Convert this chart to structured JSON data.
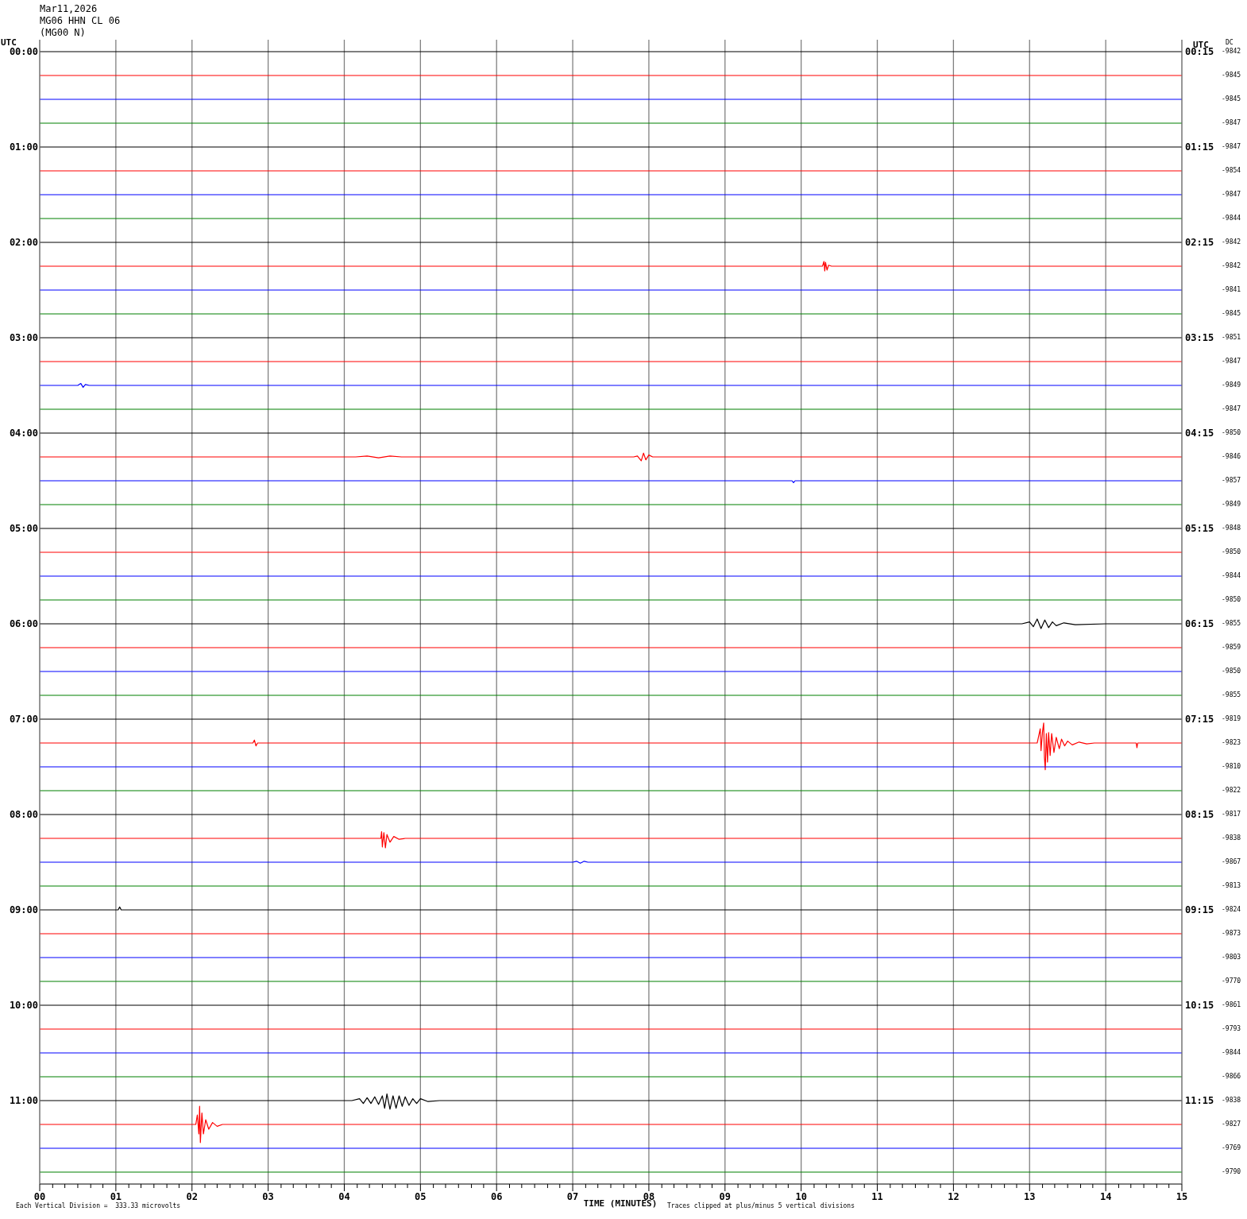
{
  "chart_data": {
    "type": "line",
    "title": "Mar11,2026",
    "subtitle": "MG06 HHN CL 06\n(MG00 N)",
    "xlabel": "TIME (MINUTES)",
    "ylabel": "UTC",
    "y2label": "UTC",
    "annotations": [
      "Each Vertical Division =  333.33 microvolts",
      "Traces clipped at plus/minus 5 vertical divisions",
      "DC",
      "-9842",
      "-9845",
      "-9845",
      "-9847",
      "-9847",
      "-9854",
      "-9847",
      "-9844",
      "-9842",
      "-9842",
      "-9841",
      "-9845",
      "-9851",
      "-9847",
      "-9849",
      "-9847",
      "-9850",
      "-9846",
      "-9857",
      "-9849",
      "-9848",
      "-9850",
      "-9844",
      "-9850",
      "-9855",
      "-9859",
      "-9850",
      "-9855",
      "-9819",
      "-9823",
      "-9810",
      "-9822",
      "-9817",
      "-9838",
      "-9867",
      "-9813",
      "-9824",
      "-9873",
      "-9803",
      "-9770",
      "-9861",
      "-9793",
      "-9844",
      "-9866",
      "-9838",
      "-9827",
      "-9769",
      "-9790"
    ],
    "grid": "x",
    "xlim": [
      0,
      15
    ],
    "xticks": [
      {
        "value": 0,
        "label": "00"
      },
      {
        "value": 0.17,
        "label": null
      },
      {
        "value": 0.33,
        "label": null
      },
      {
        "value": 0.5,
        "label": null
      },
      {
        "value": 0.67,
        "label": null
      },
      {
        "value": 0.83,
        "label": null
      },
      {
        "value": 1,
        "label": "01"
      },
      {
        "value": 1.17,
        "label": null
      },
      {
        "value": 1.33,
        "label": null
      },
      {
        "value": 1.5,
        "label": null
      },
      {
        "value": 1.67,
        "label": null
      },
      {
        "value": 1.83,
        "label": null
      },
      {
        "value": 2,
        "label": "02"
      },
      {
        "value": 2.17,
        "label": null
      },
      {
        "value": 2.33,
        "label": null
      },
      {
        "value": 2.5,
        "label": null
      },
      {
        "value": 2.67,
        "label": null
      },
      {
        "value": 2.83,
        "label": null
      },
      {
        "value": 3,
        "label": "03"
      },
      {
        "value": 3.17,
        "label": null
      },
      {
        "value": 3.33,
        "label": null
      },
      {
        "value": 3.5,
        "label": null
      },
      {
        "value": 3.67,
        "label": null
      },
      {
        "value": 3.83,
        "label": null
      },
      {
        "value": 4,
        "label": "04"
      },
      {
        "value": 4.17,
        "label": null
      },
      {
        "value": 4.33,
        "label": null
      },
      {
        "value": 4.5,
        "label": null
      },
      {
        "value": 4.67,
        "label": null
      },
      {
        "value": 4.83,
        "label": null
      },
      {
        "value": 5,
        "label": "05"
      },
      {
        "value": 5.17,
        "label": null
      },
      {
        "value": 5.33,
        "label": null
      },
      {
        "value": 5.5,
        "label": null
      },
      {
        "value": 5.67,
        "label": null
      },
      {
        "value": 5.83,
        "label": null
      },
      {
        "value": 6,
        "label": "06"
      },
      {
        "value": 6.17,
        "label": null
      },
      {
        "value": 6.33,
        "label": null
      },
      {
        "value": 6.5,
        "label": null
      },
      {
        "value": 6.67,
        "label": null
      },
      {
        "value": 6.83,
        "label": null
      },
      {
        "value": 7,
        "label": "07"
      },
      {
        "value": 7.17,
        "label": null
      },
      {
        "value": 7.33,
        "label": null
      },
      {
        "value": 7.5,
        "label": null
      },
      {
        "value": 7.67,
        "label": null
      },
      {
        "value": 7.83,
        "label": null
      },
      {
        "value": 8,
        "label": "08"
      },
      {
        "value": 8.17,
        "label": null
      },
      {
        "value": 8.33,
        "label": null
      },
      {
        "value": 8.5,
        "label": null
      },
      {
        "value": 8.67,
        "label": null
      },
      {
        "value": 8.83,
        "label": null
      },
      {
        "value": 9,
        "label": "09"
      },
      {
        "value": 9.17,
        "label": null
      },
      {
        "value": 9.33,
        "label": null
      },
      {
        "value": 9.5,
        "label": null
      },
      {
        "value": 9.67,
        "label": null
      },
      {
        "value": 9.83,
        "label": null
      },
      {
        "value": 10,
        "label": "10"
      },
      {
        "value": 10.17,
        "label": null
      },
      {
        "value": 10.33,
        "label": null
      },
      {
        "value": 10.5,
        "label": null
      },
      {
        "value": 10.67,
        "label": null
      },
      {
        "value": 10.83,
        "label": null
      },
      {
        "value": 11,
        "label": "11"
      },
      {
        "value": 11.17,
        "label": null
      },
      {
        "value": 11.33,
        "label": null
      },
      {
        "value": 11.5,
        "label": null
      },
      {
        "value": 11.67,
        "label": null
      },
      {
        "value": 11.83,
        "label": null
      },
      {
        "value": 12,
        "label": "12"
      },
      {
        "value": 12.17,
        "label": null
      },
      {
        "value": 12.33,
        "label": null
      },
      {
        "value": 12.5,
        "label": null
      },
      {
        "value": 12.67,
        "label": null
      },
      {
        "value": 12.83,
        "label": null
      },
      {
        "value": 13,
        "label": "13"
      },
      {
        "value": 13.17,
        "label": null
      },
      {
        "value": 13.33,
        "label": null
      },
      {
        "value": 13.5,
        "label": null
      },
      {
        "value": 13.67,
        "label": null
      },
      {
        "value": 13.83,
        "label": null
      },
      {
        "value": 14,
        "label": "14"
      },
      {
        "value": 14.17,
        "label": null
      },
      {
        "value": 14.33,
        "label": null
      },
      {
        "value": 14.5,
        "label": null
      },
      {
        "value": 14.67,
        "label": null
      },
      {
        "value": 14.83,
        "label": null
      },
      {
        "value": 15,
        "label": "15"
      }
    ],
    "ylim": [
      11.875,
      -0.125
    ],
    "yticks": [
      {
        "value": 0,
        "label": "00:00"
      },
      {
        "value": 1,
        "label": "01:00"
      },
      {
        "value": 2,
        "label": "02:00"
      },
      {
        "value": 3,
        "label": "03:00"
      },
      {
        "value": 4,
        "label": "04:00"
      },
      {
        "value": 5,
        "label": "05:00"
      },
      {
        "value": 6,
        "label": "06:00"
      },
      {
        "value": 7,
        "label": "07:00"
      },
      {
        "value": 8,
        "label": "08:00"
      },
      {
        "value": 9,
        "label": "09:00"
      },
      {
        "value": 10,
        "label": "10:00"
      },
      {
        "value": 11,
        "label": "11:00"
      }
    ],
    "y2lim": [
      12.125,
      0.125
    ],
    "y2ticks": [
      {
        "value": 0.25,
        "label": "00:15"
      },
      {
        "value": 1.25,
        "label": "01:15"
      },
      {
        "value": 2.25,
        "label": "02:15"
      },
      {
        "value": 3.25,
        "label": "03:15"
      },
      {
        "value": 4.25,
        "label": "04:15"
      },
      {
        "value": 5.25,
        "label": "05:15"
      },
      {
        "value": 6.25,
        "label": "06:15"
      },
      {
        "value": 7.25,
        "label": "07:15"
      },
      {
        "value": 8.25,
        "label": "08:15"
      },
      {
        "value": 9.25,
        "label": "09:15"
      },
      {
        "value": 10.25,
        "label": "10:15"
      },
      {
        "value": 11.25,
        "label": "11:15"
      }
    ],
    "series": [
      {
        "color": "#000000",
        "x": [
          0,
          15
        ],
        "values": [
          0,
          0
        ]
      },
      {
        "color": "#ff0000",
        "x": [
          0,
          15
        ],
        "values": [
          0.25,
          0.25
        ]
      },
      {
        "color": "#0000ff",
        "x": [
          0,
          15
        ],
        "values": [
          0.5,
          0.5
        ]
      },
      {
        "color": "#008000",
        "x": [
          0,
          15
        ],
        "values": [
          0.75,
          0.75
        ]
      },
      {
        "color": "#000000",
        "x": [
          0,
          15
        ],
        "values": [
          1,
          1
        ]
      },
      {
        "color": "#ff0000",
        "x": [
          0,
          15
        ],
        "values": [
          1.25,
          1.25
        ]
      },
      {
        "color": "#0000ff",
        "x": [
          0,
          15
        ],
        "values": [
          1.5,
          1.5
        ]
      },
      {
        "color": "#008000",
        "x": [
          0,
          15
        ],
        "values": [
          1.75,
          1.75
        ]
      },
      {
        "color": "#000000",
        "x": [
          0,
          15
        ],
        "values": [
          2,
          2
        ]
      },
      {
        "color": "#ff0000",
        "x": [
          0,
          10.28,
          10.3,
          10.31,
          10.32,
          10.34,
          10.36,
          10.4,
          15
        ],
        "values": [
          2.25,
          2.25,
          2.2,
          2.3,
          2.21,
          2.29,
          2.24,
          2.25,
          2.25
        ]
      },
      {
        "color": "#0000ff",
        "x": [
          0,
          15
        ],
        "values": [
          2.5,
          2.5
        ]
      },
      {
        "color": "#008000",
        "x": [
          0,
          15
        ],
        "values": [
          2.75,
          2.75
        ]
      },
      {
        "color": "#000000",
        "x": [
          0,
          15
        ],
        "values": [
          3,
          3
        ]
      },
      {
        "color": "#ff0000",
        "x": [
          0,
          15
        ],
        "values": [
          3.25,
          3.25
        ]
      },
      {
        "color": "#0000ff",
        "x": [
          0,
          0.5,
          0.54,
          0.57,
          0.6,
          0.65,
          15
        ],
        "values": [
          3.5,
          3.5,
          3.48,
          3.52,
          3.49,
          3.5,
          3.5
        ]
      },
      {
        "color": "#008000",
        "x": [
          0,
          15
        ],
        "values": [
          3.75,
          3.75
        ]
      },
      {
        "color": "#000000",
        "x": [
          0,
          15
        ],
        "values": [
          4,
          4
        ]
      },
      {
        "color": "#ff0000",
        "x": [
          0,
          4.15,
          4.3,
          4.45,
          4.6,
          4.75,
          7.8,
          7.85,
          7.9,
          7.93,
          7.96,
          8,
          8.05,
          15
        ],
        "values": [
          4.25,
          4.25,
          4.24,
          4.26,
          4.24,
          4.25,
          4.25,
          4.24,
          4.29,
          4.21,
          4.28,
          4.23,
          4.25,
          4.25
        ]
      },
      {
        "color": "#0000ff",
        "x": [
          0,
          9.88,
          9.9,
          9.92,
          15
        ],
        "values": [
          4.5,
          4.5,
          4.52,
          4.5,
          4.5
        ]
      },
      {
        "color": "#008000",
        "x": [
          0,
          15
        ],
        "values": [
          4.75,
          4.75
        ]
      },
      {
        "color": "#000000",
        "x": [
          0,
          15
        ],
        "values": [
          5,
          5
        ]
      },
      {
        "color": "#ff0000",
        "x": [
          0,
          15
        ],
        "values": [
          5.25,
          5.25
        ]
      },
      {
        "color": "#0000ff",
        "x": [
          0,
          15
        ],
        "values": [
          5.5,
          5.5
        ]
      },
      {
        "color": "#008000",
        "x": [
          0,
          15
        ],
        "values": [
          5.75,
          5.75
        ]
      },
      {
        "color": "#000000",
        "x": [
          0,
          12.9,
          13,
          13.05,
          13.1,
          13.15,
          13.2,
          13.25,
          13.3,
          13.35,
          13.45,
          13.6,
          14,
          15
        ],
        "values": [
          6,
          6,
          5.98,
          6.03,
          5.95,
          6.05,
          5.96,
          6.04,
          5.98,
          6.02,
          5.99,
          6.01,
          6,
          6
        ]
      },
      {
        "color": "#ff0000",
        "x": [
          0,
          15
        ],
        "values": [
          6.25,
          6.25
        ]
      },
      {
        "color": "#0000ff",
        "x": [
          0,
          15
        ],
        "values": [
          6.5,
          6.5
        ]
      },
      {
        "color": "#008000",
        "x": [
          0,
          15
        ],
        "values": [
          6.75,
          6.75
        ]
      },
      {
        "color": "#000000",
        "x": [
          0,
          15
        ],
        "values": [
          7,
          7
        ]
      },
      {
        "color": "#ff0000",
        "x": [
          0,
          2.8,
          2.82,
          2.84,
          2.86,
          13.1,
          13.14,
          13.15,
          13.17,
          13.185,
          13.195,
          13.206,
          13.22,
          13.235,
          13.25,
          13.27,
          13.29,
          13.32,
          13.35,
          13.39,
          13.42,
          13.46,
          13.5,
          13.56,
          13.65,
          13.75,
          13.85,
          14.4,
          14.41,
          14.42,
          15
        ],
        "values": [
          7.25,
          7.25,
          7.22,
          7.28,
          7.25,
          7.25,
          7.1,
          7.33,
          7.13,
          7.04,
          7.4,
          7.53,
          7.15,
          7.45,
          7.14,
          7.38,
          7.15,
          7.35,
          7.19,
          7.31,
          7.21,
          7.28,
          7.23,
          7.27,
          7.24,
          7.26,
          7.25,
          7.25,
          7.3,
          7.25,
          7.25
        ]
      },
      {
        "color": "#0000ff",
        "x": [
          0,
          15
        ],
        "values": [
          7.5,
          7.5
        ]
      },
      {
        "color": "#008000",
        "x": [
          0,
          15
        ],
        "values": [
          7.75,
          7.75
        ]
      },
      {
        "color": "#000000",
        "x": [
          0,
          15
        ],
        "values": [
          8,
          8
        ]
      },
      {
        "color": "#ff0000",
        "x": [
          0,
          4.48,
          4.49,
          4.5,
          4.52,
          4.54,
          4.56,
          4.6,
          4.65,
          4.72,
          4.8,
          15
        ],
        "values": [
          8.25,
          8.25,
          8.18,
          8.34,
          8.19,
          8.35,
          8.21,
          8.29,
          8.23,
          8.26,
          8.25,
          8.25
        ]
      },
      {
        "color": "#0000ff",
        "x": [
          0,
          7,
          7.05,
          7.1,
          7.15,
          7.2,
          15
        ],
        "values": [
          8.5,
          8.5,
          8.49,
          8.51,
          8.49,
          8.5,
          8.5
        ]
      },
      {
        "color": "#008000",
        "x": [
          0,
          15
        ],
        "values": [
          8.75,
          8.75
        ]
      },
      {
        "color": "#000000",
        "x": [
          0,
          1.03,
          1.05,
          1.07,
          15
        ],
        "values": [
          9,
          9,
          8.97,
          9,
          9
        ]
      },
      {
        "color": "#ff0000",
        "x": [
          0,
          15
        ],
        "values": [
          9.25,
          9.25
        ]
      },
      {
        "color": "#0000ff",
        "x": [
          0,
          15
        ],
        "values": [
          9.5,
          9.5
        ]
      },
      {
        "color": "#008000",
        "x": [
          0,
          15
        ],
        "values": [
          9.75,
          9.75
        ]
      },
      {
        "color": "#000000",
        "x": [
          0,
          15
        ],
        "values": [
          10,
          10
        ]
      },
      {
        "color": "#ff0000",
        "x": [
          0,
          15
        ],
        "values": [
          10.25,
          10.25
        ]
      },
      {
        "color": "#0000ff",
        "x": [
          0,
          15
        ],
        "values": [
          10.5,
          10.5
        ]
      },
      {
        "color": "#008000",
        "x": [
          0,
          15
        ],
        "values": [
          10.75,
          10.75
        ]
      },
      {
        "color": "#000000",
        "x": [
          0,
          4.1,
          4.2,
          4.25,
          4.3,
          4.35,
          4.4,
          4.45,
          4.5,
          4.53,
          4.56,
          4.6,
          4.64,
          4.68,
          4.72,
          4.76,
          4.8,
          4.85,
          4.9,
          4.95,
          5,
          5.1,
          5.25,
          15
        ],
        "values": [
          11,
          11,
          10.98,
          11.03,
          10.97,
          11.03,
          10.96,
          11.04,
          10.95,
          11.08,
          10.93,
          11.09,
          10.95,
          11.08,
          10.95,
          11.06,
          10.96,
          11.05,
          10.98,
          11.03,
          10.98,
          11.01,
          11,
          11
        ]
      },
      {
        "color": "#ff0000",
        "x": [
          0,
          2.05,
          2.07,
          2.09,
          2.1,
          2.11,
          2.13,
          2.15,
          2.18,
          2.22,
          2.27,
          2.33,
          2.4,
          15
        ],
        "values": [
          11.25,
          11.25,
          11.15,
          11.35,
          11.06,
          11.44,
          11.13,
          11.35,
          11.2,
          11.3,
          11.23,
          11.27,
          11.25,
          11.25
        ]
      },
      {
        "color": "#0000ff",
        "x": [
          0,
          15
        ],
        "values": [
          11.5,
          11.5
        ]
      },
      {
        "color": "#008000",
        "x": [
          0,
          15
        ],
        "values": [
          11.75,
          11.75
        ]
      }
    ]
  }
}
